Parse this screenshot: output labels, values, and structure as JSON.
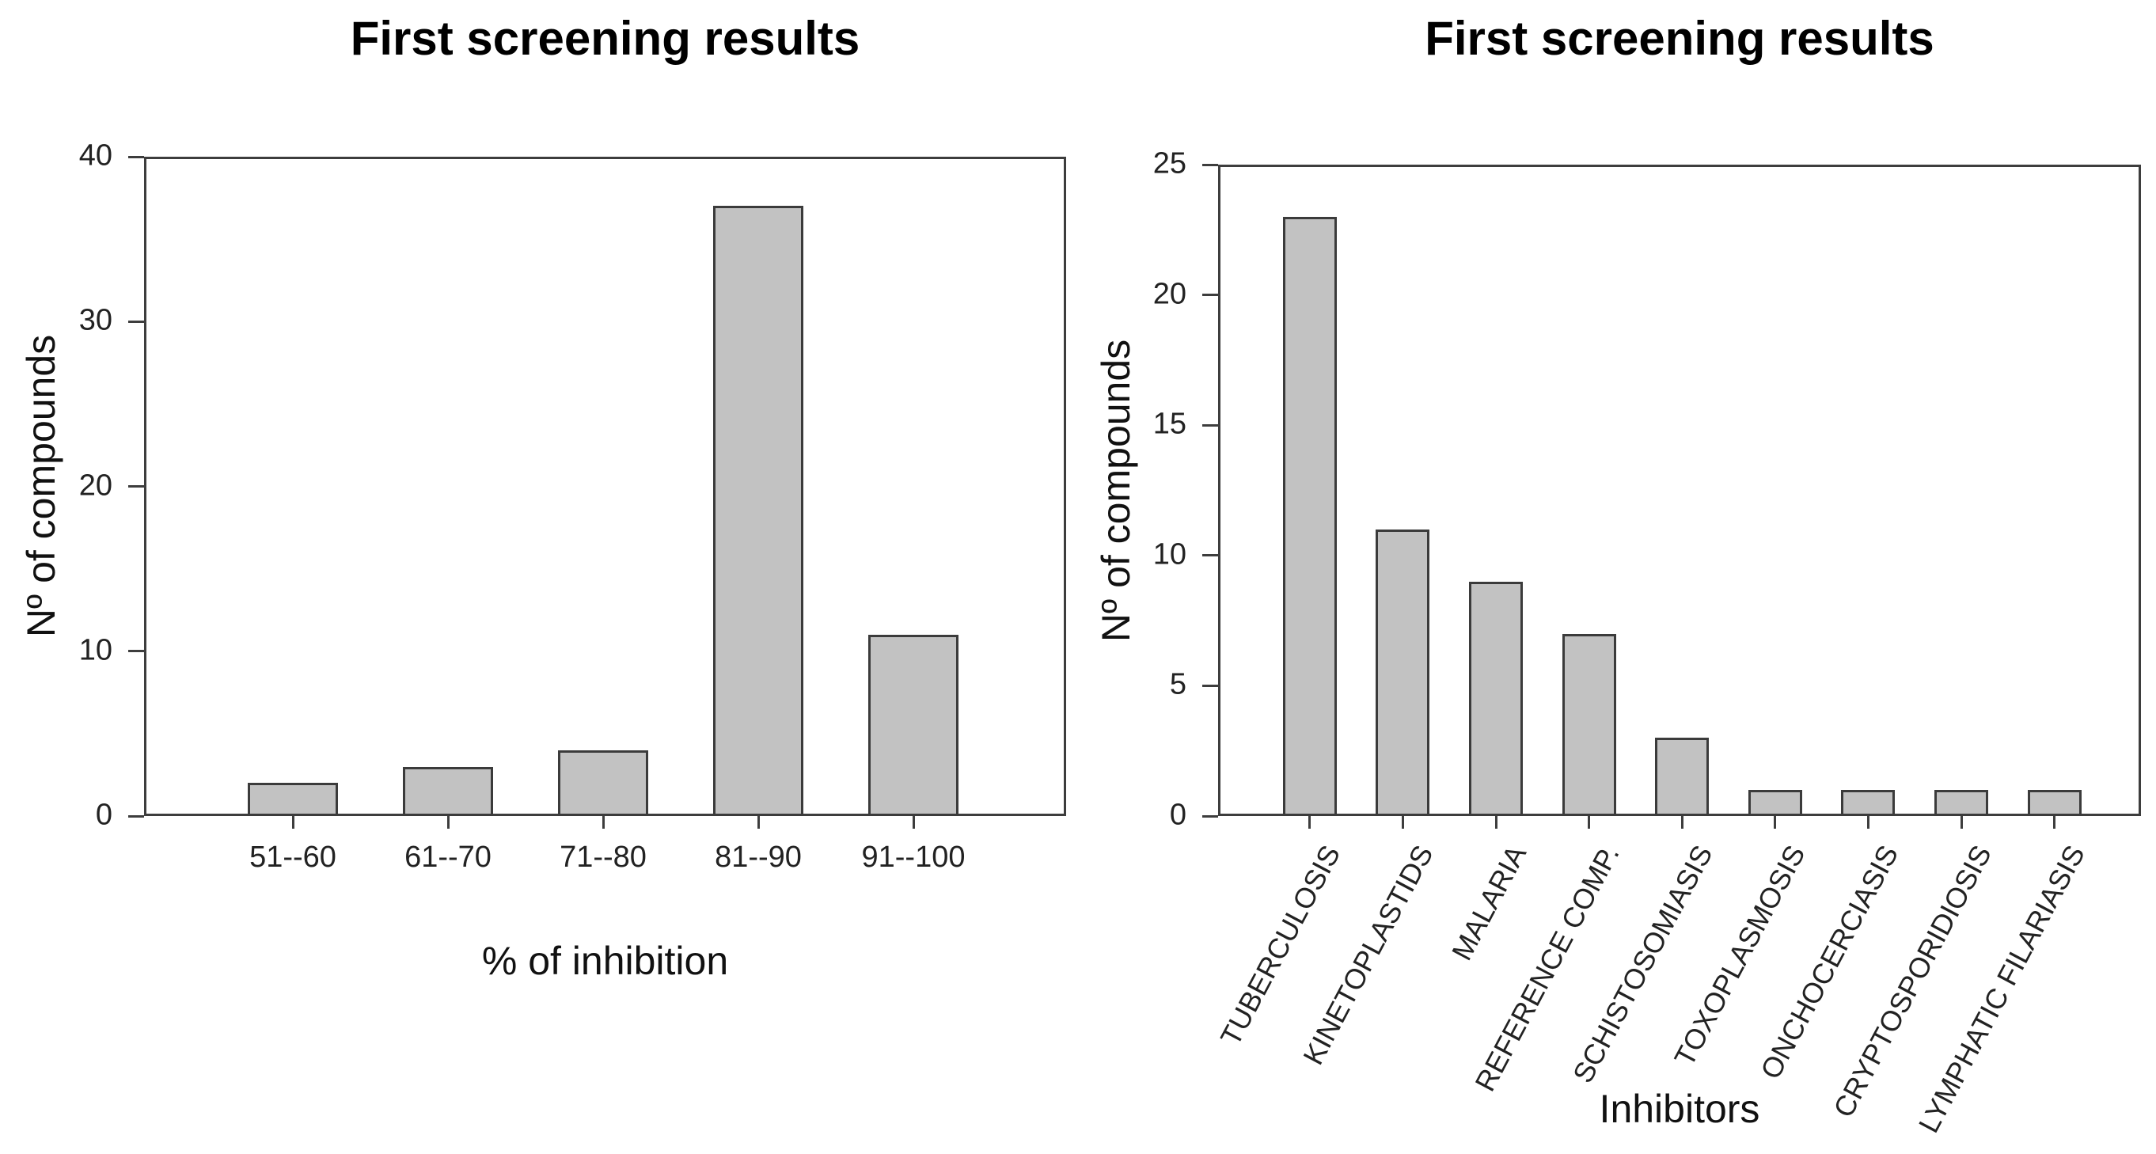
{
  "page": {
    "background": "#ffffff"
  },
  "colors": {
    "bar_fill": "#c2c2c2",
    "bar_border": "#3b3b3b",
    "axis": "#3d3d3d",
    "text": "#222222",
    "title_text": "#000000"
  },
  "chart_data": [
    {
      "id": "inhibition-histogram",
      "type": "bar",
      "title": "First screening results",
      "categories": [
        "51--60",
        "61--70",
        "71--80",
        "81--90",
        "91--100"
      ],
      "values": [
        2,
        3,
        4,
        37,
        11
      ],
      "xlabel": "% of inhibition",
      "ylabel": "Nº of compounds",
      "ylim": [
        0,
        40
      ],
      "yticks": [
        0,
        10,
        20,
        30,
        40
      ],
      "grid": false,
      "legend": null,
      "x_tick_rotation": 0
    },
    {
      "id": "inhibitors-by-disease",
      "type": "bar",
      "title": "First screening results",
      "categories": [
        "TUBERCULOSIS",
        "KINETOPLASTIDS",
        "MALARIA",
        "REFERENCE COMP.",
        "SCHISTOSOMIASIS",
        "TOXOPLASMOSIS",
        "ONCHOCERCIASIS",
        "CRYPTOSPORIDIOSIS",
        "LYMPHATIC FILARIASIS"
      ],
      "values": [
        23,
        11,
        9,
        7,
        3,
        1,
        1,
        1,
        1
      ],
      "xlabel": "Inhibitors",
      "ylabel": "Nº of compounds",
      "ylim": [
        0,
        25
      ],
      "yticks": [
        0,
        5,
        10,
        15,
        20,
        25
      ],
      "grid": false,
      "legend": null,
      "x_tick_rotation": -62
    }
  ]
}
